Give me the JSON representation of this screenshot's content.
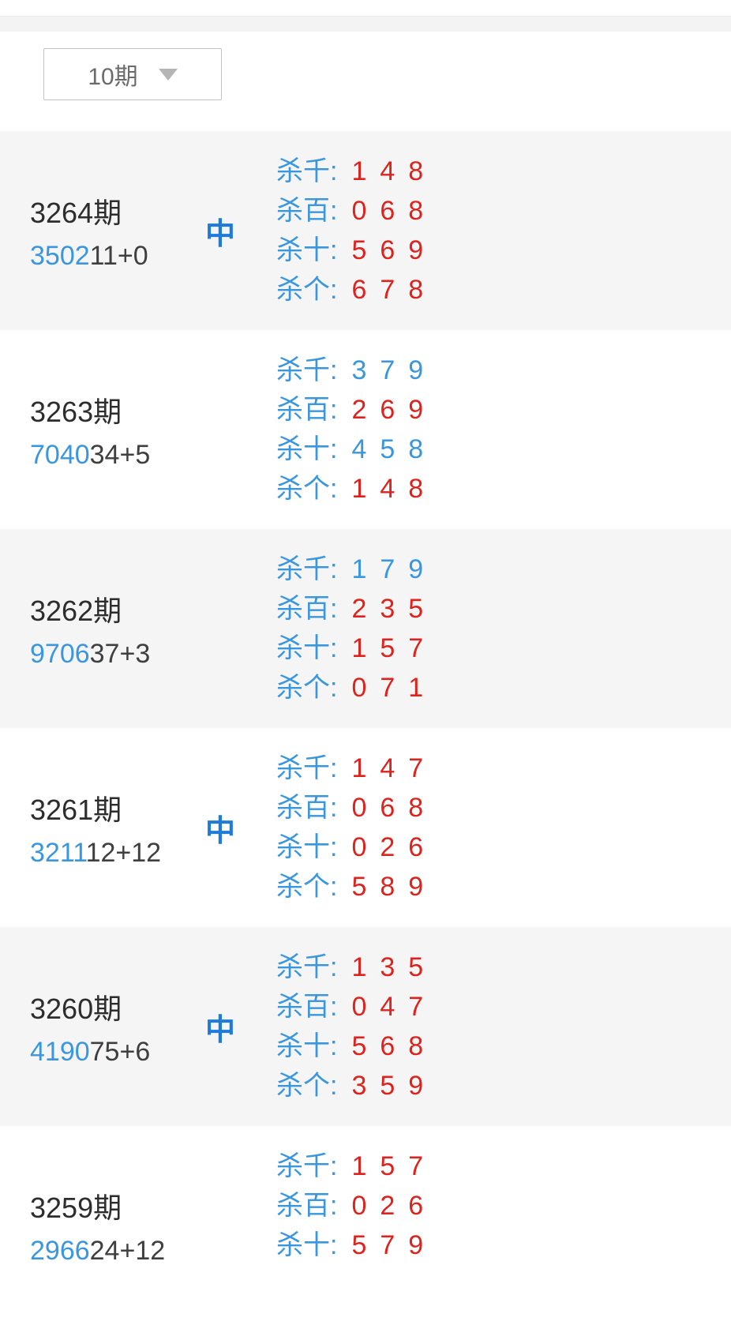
{
  "colors": {
    "blue": "#3b97dd",
    "hitBlue": "#1e7cd8",
    "red": "#dd231d",
    "grayBg": "#f5f5f5",
    "stripBg": "#f3f3f3"
  },
  "toolbar": {
    "period_selector": {
      "value": "10期",
      "caret_icon": "chevron-down-icon"
    }
  },
  "periods": [
    {
      "period": "3264期",
      "draw_front": "3502",
      "draw_back": "11+0",
      "hit": "中",
      "rows": [
        {
          "label": "杀千:",
          "value": "148",
          "color": "red"
        },
        {
          "label": "杀百:",
          "value": "068",
          "color": "red"
        },
        {
          "label": "杀十:",
          "value": "569",
          "color": "red"
        },
        {
          "label": "杀个:",
          "value": "678",
          "color": "red"
        }
      ]
    },
    {
      "period": "3263期",
      "draw_front": "7040",
      "draw_back": "34+5",
      "hit": "",
      "rows": [
        {
          "label": "杀千:",
          "value": "379",
          "color": "blue"
        },
        {
          "label": "杀百:",
          "value": "269",
          "color": "red"
        },
        {
          "label": "杀十:",
          "value": "458",
          "color": "blue"
        },
        {
          "label": "杀个:",
          "value": "148",
          "color": "red"
        }
      ]
    },
    {
      "period": "3262期",
      "draw_front": "9706",
      "draw_back": "37+3",
      "hit": "",
      "rows": [
        {
          "label": "杀千:",
          "value": "179",
          "color": "blue"
        },
        {
          "label": "杀百:",
          "value": "235",
          "color": "red"
        },
        {
          "label": "杀十:",
          "value": "157",
          "color": "red"
        },
        {
          "label": "杀个:",
          "value": "071",
          "color": "red"
        }
      ]
    },
    {
      "period": "3261期",
      "draw_front": "3211",
      "draw_back": "12+12",
      "hit": "中",
      "rows": [
        {
          "label": "杀千:",
          "value": "147",
          "color": "red"
        },
        {
          "label": "杀百:",
          "value": "068",
          "color": "red"
        },
        {
          "label": "杀十:",
          "value": "026",
          "color": "red"
        },
        {
          "label": "杀个:",
          "value": "589",
          "color": "red"
        }
      ]
    },
    {
      "period": "3260期",
      "draw_front": "4190",
      "draw_back": "75+6",
      "hit": "中",
      "rows": [
        {
          "label": "杀千:",
          "value": "135",
          "color": "red"
        },
        {
          "label": "杀百:",
          "value": "047",
          "color": "red"
        },
        {
          "label": "杀十:",
          "value": "568",
          "color": "red"
        },
        {
          "label": "杀个:",
          "value": "359",
          "color": "red"
        }
      ]
    },
    {
      "period": "3259期",
      "draw_front": "2966",
      "draw_back": "24+12",
      "hit": "",
      "rows": [
        {
          "label": "杀千:",
          "value": "157",
          "color": "red"
        },
        {
          "label": "杀百:",
          "value": "026",
          "color": "red"
        },
        {
          "label": "杀十:",
          "value": "579",
          "color": "red"
        }
      ]
    }
  ]
}
